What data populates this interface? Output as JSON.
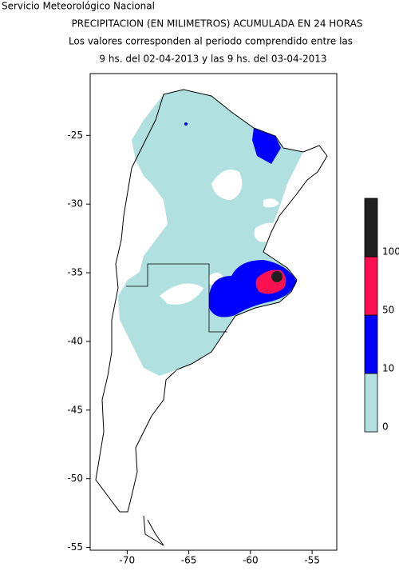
{
  "header": {
    "agency": "Servicio Meteorológico Nacional",
    "title": "PRECIPITACION (EN MILIMETROS) ACUMULADA EN 24 HORAS",
    "line2": "Los valores corresponden al periodo comprendido entre las",
    "line3": "9 hs. del 02-04-2013  y las 9 hs. del 03-04-2013"
  },
  "map": {
    "xlim": [
      -73,
      -53
    ],
    "ylim": [
      -55.2,
      -20.5
    ],
    "xticks": [
      -70,
      -65,
      -60,
      -55
    ],
    "yticks": [
      -25,
      -30,
      -35,
      -40,
      -45,
      -50,
      -55
    ]
  },
  "colorbar": {
    "levels": [
      0,
      10,
      50,
      100
    ],
    "colors": [
      "#b0e0e0",
      "#0000ff",
      "#ff1050",
      "#202020"
    ]
  }
}
